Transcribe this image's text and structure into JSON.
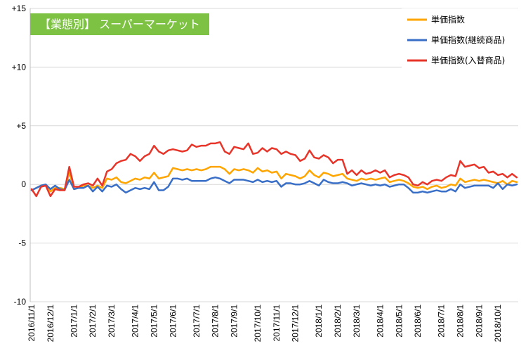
{
  "chart_data": {
    "type": "line",
    "title": "【業態別】 スーパーマーケット",
    "xlabel": "",
    "ylabel": "",
    "ylim": [
      -10,
      15
    ],
    "yticks": [
      15,
      10,
      5,
      0,
      -5,
      -10
    ],
    "ytick_labels": [
      "+15",
      "+10",
      "+5",
      "0",
      "-5",
      "-10"
    ],
    "grid": true,
    "legend_position": "top-right",
    "x_tick_labels": [
      "2016/11/1",
      "2016/12/1",
      "2017/1/1",
      "2017/2/1",
      "2017/3/1",
      "2017/4/1",
      "2017/5/1",
      "2017/6/1",
      "2017/7/1",
      "2017/8/1",
      "2017/9/1",
      "2017/10/1",
      "2017/11/1",
      "2017/12/1",
      "2018/1/1",
      "2018/2/1",
      "2018/3/1",
      "2018/4/1",
      "2018/5/1",
      "2018/6/1",
      "2018/7/1",
      "2018/8/1",
      "2018/9/1",
      "2018/10/1"
    ],
    "x_tick_positions": [
      0,
      4,
      9,
      13,
      17,
      22,
      26,
      30,
      35,
      39,
      43,
      48,
      52,
      56,
      61,
      65,
      69,
      74,
      78,
      82,
      87,
      91,
      95,
      99
    ],
    "series": [
      {
        "name": "単価指数",
        "color": "#FFA500",
        "values": [
          -0.5,
          -0.3,
          -0.1,
          -0.1,
          -0.6,
          -0.3,
          -0.3,
          -0.4,
          1.0,
          -0.4,
          -0.3,
          -0.1,
          -0.1,
          -0.3,
          -0.1,
          -0.3,
          0.5,
          0.4,
          0.6,
          0.2,
          0.1,
          0.3,
          0.5,
          0.4,
          0.6,
          0.5,
          1.0,
          0.5,
          0.6,
          0.7,
          1.4,
          1.3,
          1.2,
          1.3,
          1.2,
          1.3,
          1.2,
          1.3,
          1.5,
          1.5,
          1.5,
          1.3,
          0.9,
          1.3,
          1.2,
          1.3,
          1.2,
          1.0,
          1.4,
          1.1,
          1.2,
          1.0,
          1.1,
          0.5,
          0.9,
          0.8,
          0.7,
          0.5,
          0.7,
          1.2,
          0.8,
          0.6,
          1.0,
          0.9,
          0.7,
          0.8,
          0.9,
          0.5,
          0.4,
          0.3,
          0.5,
          0.4,
          0.5,
          0.4,
          0.5,
          0.6,
          0.2,
          0.3,
          0.4,
          0.3,
          0.1,
          -0.2,
          -0.3,
          -0.2,
          -0.4,
          -0.2,
          -0.1,
          -0.3,
          -0.2,
          0.0,
          -0.1,
          0.5,
          0.2,
          0.3,
          0.4,
          0.3,
          0.4,
          0.3,
          0.2,
          0.1,
          0.3,
          0.0,
          0.3,
          0.2
        ]
      },
      {
        "name": "単価指数(継続商品)",
        "color": "#3A6FC7",
        "values": [
          -0.5,
          -0.3,
          -0.1,
          0.0,
          -0.4,
          -0.1,
          -0.4,
          -0.5,
          0.4,
          -0.4,
          -0.3,
          -0.3,
          -0.1,
          -0.6,
          -0.2,
          -0.6,
          -0.1,
          -0.2,
          0.0,
          -0.4,
          -0.7,
          -0.5,
          -0.3,
          -0.4,
          -0.3,
          -0.4,
          0.2,
          -0.5,
          -0.5,
          -0.2,
          0.5,
          0.5,
          0.4,
          0.5,
          0.3,
          0.3,
          0.3,
          0.3,
          0.5,
          0.6,
          0.5,
          0.3,
          0.1,
          0.4,
          0.4,
          0.4,
          0.3,
          0.2,
          0.4,
          0.2,
          0.3,
          0.2,
          0.3,
          -0.2,
          0.1,
          0.1,
          0.0,
          0.0,
          0.1,
          0.3,
          0.1,
          -0.1,
          0.4,
          0.2,
          0.1,
          0.1,
          0.2,
          0.1,
          -0.1,
          0.0,
          0.1,
          0.0,
          -0.1,
          0.0,
          -0.1,
          0.0,
          -0.2,
          -0.1,
          0.0,
          0.0,
          -0.3,
          -0.7,
          -0.7,
          -0.6,
          -0.7,
          -0.6,
          -0.5,
          -0.6,
          -0.6,
          -0.4,
          -0.6,
          0.0,
          -0.3,
          -0.2,
          -0.1,
          -0.1,
          -0.1,
          -0.1,
          -0.3,
          0.1,
          -0.4,
          0.0,
          -0.1,
          0.0
        ]
      },
      {
        "name": "単価指数(入替商品)",
        "color": "#E8352A",
        "values": [
          -0.4,
          -1.0,
          -0.2,
          -0.1,
          -1.0,
          -0.4,
          -0.5,
          -0.5,
          1.5,
          -0.2,
          -0.2,
          0.0,
          0.1,
          -0.1,
          0.5,
          -0.1,
          1.1,
          1.3,
          1.8,
          2.0,
          2.1,
          2.6,
          2.4,
          2.0,
          2.4,
          2.6,
          3.3,
          2.8,
          2.6,
          2.9,
          3.0,
          2.9,
          2.8,
          2.9,
          3.4,
          3.2,
          3.3,
          3.3,
          3.5,
          3.5,
          3.6,
          2.8,
          2.6,
          3.2,
          3.1,
          3.0,
          3.5,
          2.6,
          2.7,
          3.1,
          2.8,
          3.1,
          3.0,
          2.6,
          2.8,
          2.6,
          2.5,
          2.0,
          2.2,
          2.9,
          2.3,
          2.2,
          2.5,
          2.3,
          1.8,
          2.1,
          2.1,
          0.9,
          1.2,
          0.8,
          1.2,
          0.9,
          1.0,
          1.2,
          1.0,
          1.2,
          0.6,
          0.8,
          0.9,
          0.8,
          0.6,
          0.0,
          -0.1,
          0.2,
          0.0,
          0.3,
          0.4,
          0.3,
          0.6,
          0.8,
          0.7,
          2.0,
          1.5,
          1.6,
          1.7,
          1.4,
          1.5,
          1.0,
          1.1,
          0.8,
          0.9,
          0.6,
          0.9,
          0.6
        ]
      }
    ]
  }
}
